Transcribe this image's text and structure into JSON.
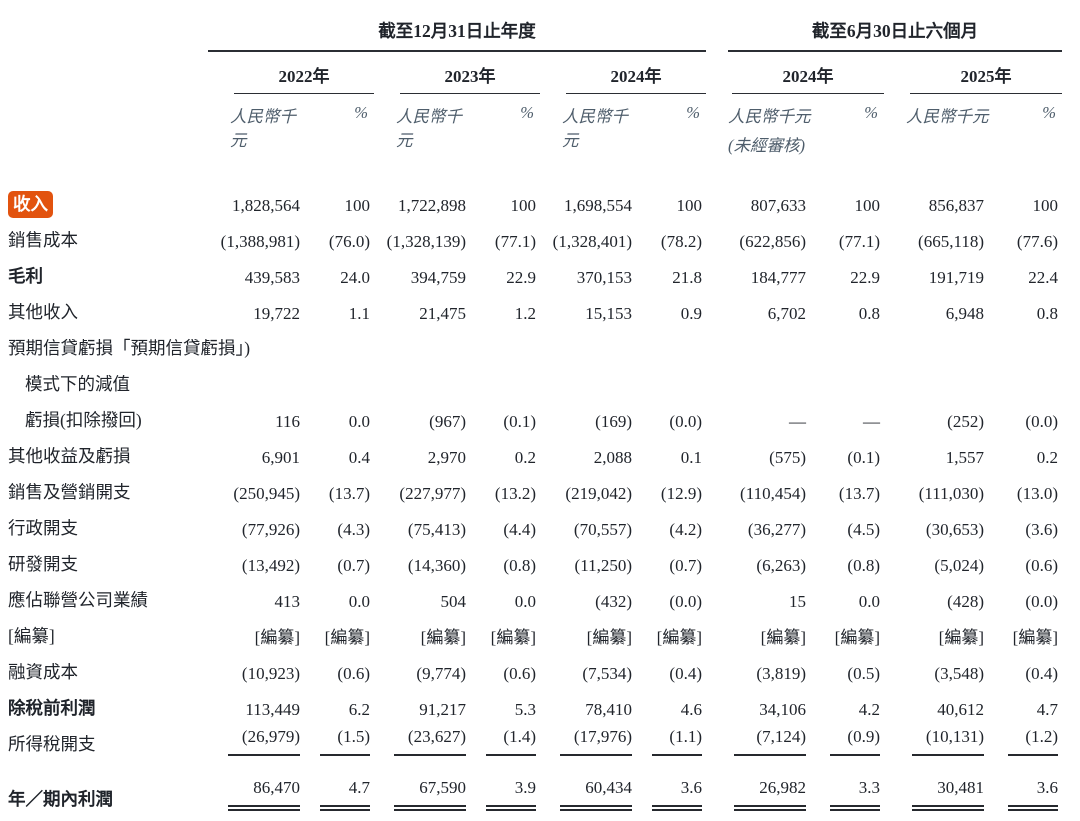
{
  "colors": {
    "text": "#20242b",
    "muted_header": "#4e5d6b",
    "rule": "#2b2e34",
    "highlight_bg": "#e2530f",
    "highlight_text": "#ffffff",
    "background": "#ffffff"
  },
  "header": {
    "unit_label": "人民幣千元",
    "pct_label": "%",
    "groups": [
      {
        "label": "截至12月31日止年度",
        "years": [
          {
            "label": "2022年"
          },
          {
            "label": "2023年"
          },
          {
            "label": "2024年"
          }
        ]
      },
      {
        "label": "截至6月30日止六個月",
        "years": [
          {
            "label": "2024年",
            "note": "(未經審核)"
          },
          {
            "label": "2025年"
          }
        ]
      }
    ]
  },
  "table": {
    "rows": [
      {
        "label": "收入",
        "highlight": true,
        "spacer_before": true,
        "values": [
          "1,828,564",
          "100",
          "1,722,898",
          "100",
          "1,698,554",
          "100",
          "807,633",
          "100",
          "856,837",
          "100"
        ]
      },
      {
        "label": "銷售成本",
        "values": [
          "(1,388,981)",
          "(76.0)",
          "(1,328,139)",
          "(77.1)",
          "(1,328,401)",
          "(78.2)",
          "(622,856)",
          "(77.1)",
          "(665,118)",
          "(77.6)"
        ]
      },
      {
        "label": "毛利",
        "bold": true,
        "values": [
          "439,583",
          "24.0",
          "394,759",
          "22.9",
          "370,153",
          "21.8",
          "184,777",
          "22.9",
          "191,719",
          "22.4"
        ]
      },
      {
        "label": "其他收入",
        "values": [
          "19,722",
          "1.1",
          "21,475",
          "1.2",
          "15,153",
          "0.9",
          "6,702",
          "0.8",
          "6,948",
          "0.8"
        ]
      },
      {
        "label": "預期信貸虧損「預期信貸虧損」)",
        "values": null
      },
      {
        "label": "模式下的減值",
        "indent": true,
        "values": null
      },
      {
        "label": "虧損(扣除撥回)",
        "indent": true,
        "values": [
          "116",
          "0.0",
          "(967)",
          "(0.1)",
          "(169)",
          "(0.0)",
          "—",
          "—",
          "(252)",
          "(0.0)"
        ]
      },
      {
        "label": "其他收益及虧損",
        "values": [
          "6,901",
          "0.4",
          "2,970",
          "0.2",
          "2,088",
          "0.1",
          "(575)",
          "(0.1)",
          "1,557",
          "0.2"
        ]
      },
      {
        "label": "銷售及營銷開支",
        "values": [
          "(250,945)",
          "(13.7)",
          "(227,977)",
          "(13.2)",
          "(219,042)",
          "(12.9)",
          "(110,454)",
          "(13.7)",
          "(111,030)",
          "(13.0)"
        ]
      },
      {
        "label": "行政開支",
        "values": [
          "(77,926)",
          "(4.3)",
          "(75,413)",
          "(4.4)",
          "(70,557)",
          "(4.2)",
          "(36,277)",
          "(4.5)",
          "(30,653)",
          "(3.6)"
        ]
      },
      {
        "label": "研發開支",
        "values": [
          "(13,492)",
          "(0.7)",
          "(14,360)",
          "(0.8)",
          "(11,250)",
          "(0.7)",
          "(6,263)",
          "(0.8)",
          "(5,024)",
          "(0.6)"
        ]
      },
      {
        "label": "應佔聯營公司業績",
        "values": [
          "413",
          "0.0",
          "504",
          "0.0",
          "(432)",
          "(0.0)",
          "15",
          "0.0",
          "(428)",
          "(0.0)"
        ]
      },
      {
        "label": "[編纂]",
        "values": [
          "[編纂]",
          "[編纂]",
          "[編纂]",
          "[編纂]",
          "[編纂]",
          "[編纂]",
          "[編纂]",
          "[編纂]",
          "[編纂]",
          "[編纂]"
        ]
      },
      {
        "label": "融資成本",
        "values": [
          "(10,923)",
          "(0.6)",
          "(9,774)",
          "(0.6)",
          "(7,534)",
          "(0.4)",
          "(3,819)",
          "(0.5)",
          "(3,548)",
          "(0.4)"
        ]
      },
      {
        "label": "除稅前利潤",
        "bold": true,
        "values": [
          "113,449",
          "6.2",
          "91,217",
          "5.3",
          "78,410",
          "4.6",
          "34,106",
          "4.2",
          "40,612",
          "4.7"
        ]
      },
      {
        "label": "所得稅開支",
        "rule_below": true,
        "values": [
          "(26,979)",
          "(1.5)",
          "(23,627)",
          "(1.4)",
          "(17,976)",
          "(1.1)",
          "(7,124)",
          "(0.9)",
          "(10,131)",
          "(1.2)"
        ]
      },
      {
        "label": "年／期內利潤",
        "bold": true,
        "double_rule_below": true,
        "spacer_before": true,
        "values": [
          "86,470",
          "4.7",
          "67,590",
          "3.9",
          "60,434",
          "3.6",
          "26,982",
          "3.3",
          "30,481",
          "3.6"
        ]
      }
    ]
  }
}
